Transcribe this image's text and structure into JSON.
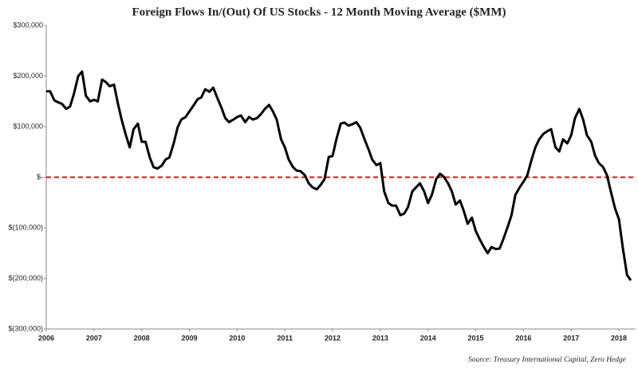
{
  "chart_data": {
    "type": "line",
    "title": "Foreign Flows In/(Out) Of  US Stocks  - 12 Month Moving Average ($MM)",
    "source": "Source: Treasury International Capital, Zero Hedge",
    "x": [
      2006,
      2006.08,
      2006.17,
      2006.25,
      2006.33,
      2006.42,
      2006.5,
      2006.58,
      2006.67,
      2006.75,
      2006.83,
      2006.92,
      2007,
      2007.08,
      2007.17,
      2007.25,
      2007.33,
      2007.42,
      2007.5,
      2007.58,
      2007.67,
      2007.75,
      2007.83,
      2007.92,
      2008,
      2008.08,
      2008.17,
      2008.25,
      2008.33,
      2008.42,
      2008.5,
      2008.58,
      2008.67,
      2008.75,
      2008.83,
      2008.92,
      2009,
      2009.08,
      2009.17,
      2009.25,
      2009.33,
      2009.42,
      2009.5,
      2009.58,
      2009.67,
      2009.75,
      2009.83,
      2009.92,
      2010,
      2010.08,
      2010.17,
      2010.25,
      2010.33,
      2010.42,
      2010.5,
      2010.58,
      2010.67,
      2010.75,
      2010.83,
      2010.92,
      2011,
      2011.08,
      2011.17,
      2011.25,
      2011.33,
      2011.42,
      2011.5,
      2011.58,
      2011.67,
      2011.75,
      2011.83,
      2011.92,
      2012,
      2012.08,
      2012.17,
      2012.25,
      2012.33,
      2012.42,
      2012.5,
      2012.58,
      2012.67,
      2012.75,
      2012.83,
      2012.92,
      2013,
      2013.08,
      2013.17,
      2013.25,
      2013.33,
      2013.42,
      2013.5,
      2013.58,
      2013.67,
      2013.75,
      2013.83,
      2013.92,
      2014,
      2014.08,
      2014.17,
      2014.25,
      2014.33,
      2014.42,
      2014.5,
      2014.58,
      2014.67,
      2014.75,
      2014.83,
      2014.92,
      2015,
      2015.08,
      2015.17,
      2015.25,
      2015.33,
      2015.42,
      2015.5,
      2015.58,
      2015.67,
      2015.75,
      2015.83,
      2015.92,
      2016,
      2016.08,
      2016.17,
      2016.25,
      2016.33,
      2016.42,
      2016.5,
      2016.58,
      2016.67,
      2016.75,
      2016.83,
      2016.92,
      2017,
      2017.08,
      2017.17,
      2017.25,
      2017.33,
      2017.42,
      2017.5,
      2017.58,
      2017.67,
      2017.75,
      2017.83,
      2017.92,
      2018,
      2018.08,
      2018.17,
      2018.25
    ],
    "series": [
      {
        "color": "#000000",
        "values": [
          170000,
          170000,
          152000,
          148000,
          145000,
          135000,
          140000,
          165000,
          200000,
          209000,
          161000,
          150000,
          153000,
          150000,
          193000,
          188000,
          180000,
          183000,
          146000,
          114000,
          83000,
          59000,
          95000,
          106000,
          70000,
          70000,
          39000,
          20000,
          17000,
          23000,
          35000,
          39000,
          67000,
          98000,
          114000,
          119000,
          130000,
          141000,
          154000,
          158000,
          174000,
          169000,
          177000,
          158000,
          138000,
          117000,
          109000,
          114000,
          119000,
          122000,
          109000,
          119000,
          114000,
          117000,
          125000,
          135000,
          143000,
          130000,
          114000,
          75000,
          59000,
          35000,
          20000,
          13000,
          12000,
          4000,
          -12000,
          -20000,
          -24000,
          -15000,
          -4000,
          40000,
          42000,
          75000,
          106000,
          108000,
          102000,
          105000,
          109000,
          98000,
          75000,
          56000,
          35000,
          24000,
          28000,
          -28000,
          -51000,
          -56000,
          -56000,
          -75000,
          -72000,
          -59000,
          -28000,
          -20000,
          -12000,
          -28000,
          -51000,
          -35000,
          -4000,
          7000,
          1000,
          -12000,
          -28000,
          -54000,
          -46000,
          -67000,
          -92000,
          -80000,
          -106000,
          -122000,
          -138000,
          -150000,
          -138000,
          -142000,
          -141000,
          -122000,
          -98000,
          -75000,
          -35000,
          -20000,
          -9000,
          4000,
          35000,
          59000,
          75000,
          86000,
          91000,
          95000,
          59000,
          51000,
          75000,
          67000,
          83000,
          117000,
          135000,
          114000,
          83000,
          70000,
          43000,
          28000,
          20000,
          4000,
          -28000,
          -62000,
          -83000,
          -138000,
          -193000,
          -204000
        ]
      }
    ],
    "reference_line": {
      "value": 0,
      "color": "#dd1111"
    },
    "xlim": [
      2006,
      2018.35
    ],
    "xticks": [
      2006,
      2007,
      2008,
      2009,
      2010,
      2011,
      2012,
      2013,
      2014,
      2015,
      2016,
      2017,
      2018
    ],
    "ylim": [
      -300000,
      300000
    ],
    "yticks": [
      {
        "value": -300000,
        "label": "$(300,000)"
      },
      {
        "value": -200000,
        "label": "$(200,000)"
      },
      {
        "value": -100000,
        "label": "$(100,000)"
      },
      {
        "value": 0,
        "label": "$-"
      },
      {
        "value": 100000,
        "label": "$100,000"
      },
      {
        "value": 200000,
        "label": "$200,000"
      },
      {
        "value": 300000,
        "label": "$300,000"
      }
    ]
  }
}
